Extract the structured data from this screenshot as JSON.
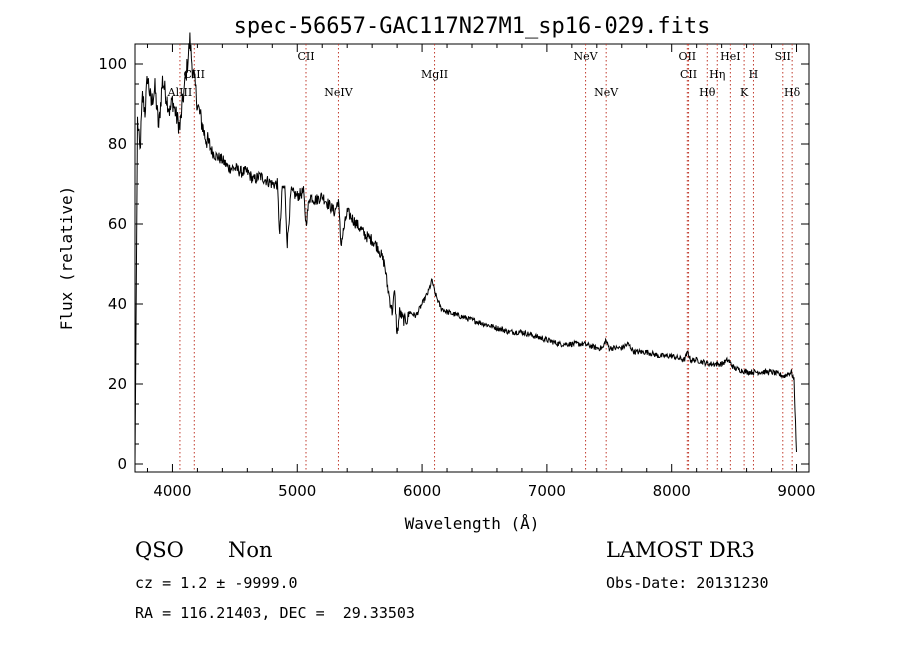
{
  "chart_data": {
    "type": "line",
    "title": "spec-56657-GAC117N27M1_sp16-029.fits",
    "xlabel": "Wavelength (Å)",
    "ylabel": "Flux (relative)",
    "xlim": [
      3700,
      9100
    ],
    "ylim": [
      -2,
      105
    ],
    "x_ticks": [
      4000,
      5000,
      6000,
      7000,
      8000,
      9000
    ],
    "y_ticks": [
      0,
      20,
      40,
      60,
      80,
      100
    ],
    "grid": false,
    "series": [
      {
        "color": "#000000",
        "x": [
          3700,
          3720,
          3740,
          3760,
          3780,
          3800,
          3830,
          3860,
          3890,
          3920,
          3950,
          3980,
          4000,
          4030,
          4060,
          4080,
          4100,
          4120,
          4140,
          4160,
          4180,
          4200,
          4230,
          4260,
          4290,
          4320,
          4350,
          4400,
          4450,
          4500,
          4550,
          4600,
          4650,
          4700,
          4750,
          4800,
          4840,
          4860,
          4880,
          4900,
          4920,
          4950,
          5000,
          5050,
          5070,
          5100,
          5150,
          5200,
          5250,
          5300,
          5330,
          5350,
          5400,
          5450,
          5500,
          5550,
          5600,
          5650,
          5700,
          5720,
          5760,
          5780,
          5800,
          5820,
          5850,
          5880,
          5900,
          5950,
          6000,
          6050,
          6080,
          6100,
          6150,
          6200,
          6300,
          6400,
          6500,
          6600,
          6700,
          6800,
          6900,
          7000,
          7100,
          7200,
          7300,
          7400,
          7450,
          7470,
          7500,
          7600,
          7650,
          7700,
          7800,
          7900,
          8000,
          8100,
          8130,
          8150,
          8200,
          8300,
          8400,
          8450,
          8500,
          8600,
          8700,
          8800,
          8900,
          8960,
          8980,
          9000
        ],
        "y": [
          0,
          86,
          78,
          92,
          88,
          97,
          90,
          94,
          84,
          96,
          92,
          88,
          91,
          87,
          84,
          90,
          95,
          100,
          106,
          99,
          95,
          90,
          86,
          82,
          80,
          78,
          77,
          76,
          74,
          74,
          73,
          73,
          71,
          72,
          71,
          70,
          70,
          57,
          69,
          69,
          55,
          68,
          67,
          68,
          60,
          67,
          66,
          67,
          65,
          63,
          66,
          55,
          63,
          61,
          59,
          57,
          56,
          54,
          50,
          45,
          38,
          43,
          32,
          38,
          36,
          36,
          38,
          37,
          40,
          43,
          46,
          43,
          39,
          38,
          37,
          36,
          35,
          34,
          33,
          33,
          32,
          31,
          30,
          30,
          30,
          29,
          29,
          31,
          29,
          29,
          30,
          28,
          28,
          27,
          27,
          26,
          28,
          26,
          26,
          25,
          25,
          26,
          24,
          23,
          23,
          23,
          22,
          23,
          21,
          3
        ]
      }
    ],
    "line_markers": [
      {
        "label": "AlIII",
        "x": 4060,
        "row": 2
      },
      {
        "label": "CIII",
        "x": 4175,
        "row": 1
      },
      {
        "label": "CII",
        "x": 5070,
        "row": 0
      },
      {
        "label": "NeIV",
        "x": 5330,
        "row": 2
      },
      {
        "label": "MgII",
        "x": 6100,
        "row": 1
      },
      {
        "label": "NeV",
        "x": 7310,
        "row": 0
      },
      {
        "label": "NeV",
        "x": 7475,
        "row": 2
      },
      {
        "label": "OII",
        "x": 8125,
        "row": 0
      },
      {
        "label": "CII",
        "x": 8135,
        "row": 1
      },
      {
        "label": "Hθ",
        "x": 8285,
        "row": 2
      },
      {
        "label": "Hη",
        "x": 8365,
        "row": 1
      },
      {
        "label": "HeI",
        "x": 8470,
        "row": 0
      },
      {
        "label": "K",
        "x": 8580,
        "row": 2
      },
      {
        "label": "H",
        "x": 8655,
        "row": 1
      },
      {
        "label": "SII",
        "x": 8890,
        "row": 0
      },
      {
        "label": "Hδ",
        "x": 8965,
        "row": 2
      }
    ]
  },
  "info": {
    "class_label": "QSO",
    "subclass_label": "Non",
    "survey": "LAMOST DR3",
    "cz": "cz = 1.2 ± -9999.0",
    "obs_date": "Obs-Date: 20131230",
    "coords": "RA = 116.21403, DEC =  29.33503"
  }
}
